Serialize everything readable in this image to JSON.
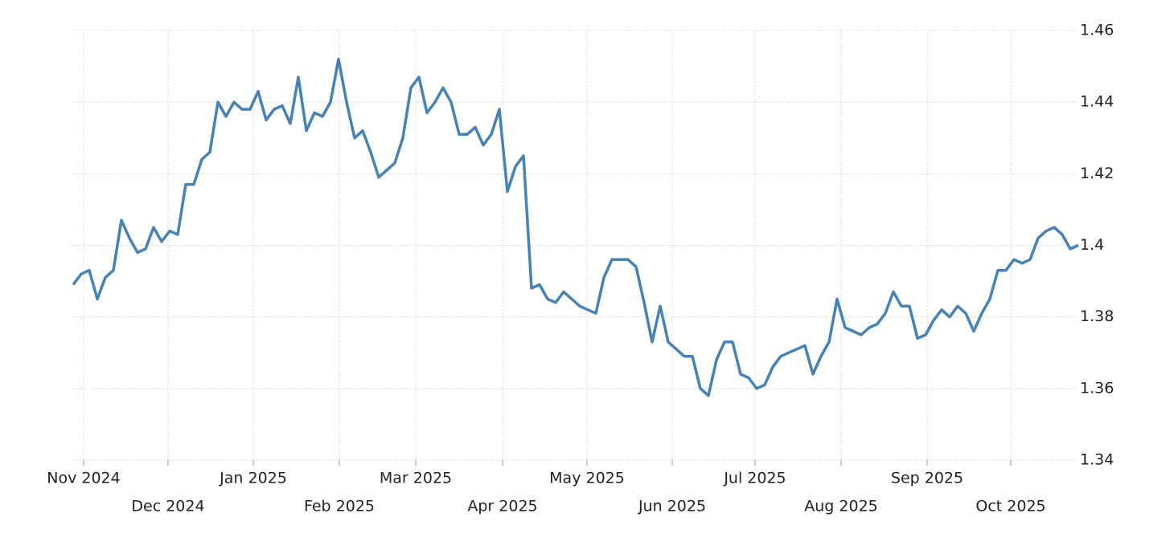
{
  "chart_data": {
    "type": "line",
    "series": [
      {
        "color": "#4682b4",
        "values": [
          1.389,
          1.392,
          1.393,
          1.385,
          1.391,
          1.393,
          1.407,
          1.402,
          1.398,
          1.399,
          1.405,
          1.401,
          1.404,
          1.403,
          1.417,
          1.417,
          1.424,
          1.426,
          1.44,
          1.436,
          1.44,
          1.438,
          1.438,
          1.443,
          1.435,
          1.438,
          1.439,
          1.434,
          1.447,
          1.432,
          1.437,
          1.436,
          1.44,
          1.452,
          1.44,
          1.43,
          1.432,
          1.426,
          1.419,
          1.421,
          1.423,
          1.43,
          1.444,
          1.447,
          1.437,
          1.44,
          1.444,
          1.44,
          1.431,
          1.431,
          1.433,
          1.428,
          1.431,
          1.438,
          1.415,
          1.422,
          1.425,
          1.388,
          1.389,
          1.385,
          1.384,
          1.387,
          1.385,
          1.383,
          1.382,
          1.381,
          1.391,
          1.396,
          1.396,
          1.396,
          1.394,
          1.384,
          1.373,
          1.383,
          1.373,
          1.371,
          1.369,
          1.369,
          1.36,
          1.358,
          1.368,
          1.373,
          1.373,
          1.364,
          1.363,
          1.36,
          1.361,
          1.366,
          1.369,
          1.37,
          1.371,
          1.372,
          1.364,
          1.369,
          1.373,
          1.385,
          1.377,
          1.376,
          1.375,
          1.377,
          1.378,
          1.381,
          1.387,
          1.383,
          1.383,
          1.374,
          1.375,
          1.379,
          1.382,
          1.38,
          1.383,
          1.381,
          1.376,
          1.381,
          1.385,
          1.393,
          1.393,
          1.396,
          1.395,
          1.396,
          1.402,
          1.404,
          1.405,
          1.403,
          1.399,
          1.4
        ]
      }
    ],
    "xlim": [
      0,
      125
    ],
    "xticks": [
      {
        "value": 1.3,
        "label": "Nov 2024"
      },
      {
        "value": 11.8,
        "label": "Dec 2024"
      },
      {
        "value": 22.4,
        "label": "Jan 2025"
      },
      {
        "value": 33.1,
        "label": "Feb 2025"
      },
      {
        "value": 42.6,
        "label": "Mar 2025"
      },
      {
        "value": 53.4,
        "label": "Apr 2025"
      },
      {
        "value": 63.9,
        "label": "May 2025"
      },
      {
        "value": 74.5,
        "label": "Jun 2025"
      },
      {
        "value": 84.8,
        "label": "Jul 2025"
      },
      {
        "value": 95.5,
        "label": "Aug 2025"
      },
      {
        "value": 106.2,
        "label": "Sep 2025"
      },
      {
        "value": 116.6,
        "label": "Oct 2025"
      }
    ],
    "ylim": [
      1.34,
      1.46
    ],
    "yticks": [
      1.34,
      1.36,
      1.38,
      1.4,
      1.42,
      1.44,
      1.46
    ],
    "grid": true
  }
}
